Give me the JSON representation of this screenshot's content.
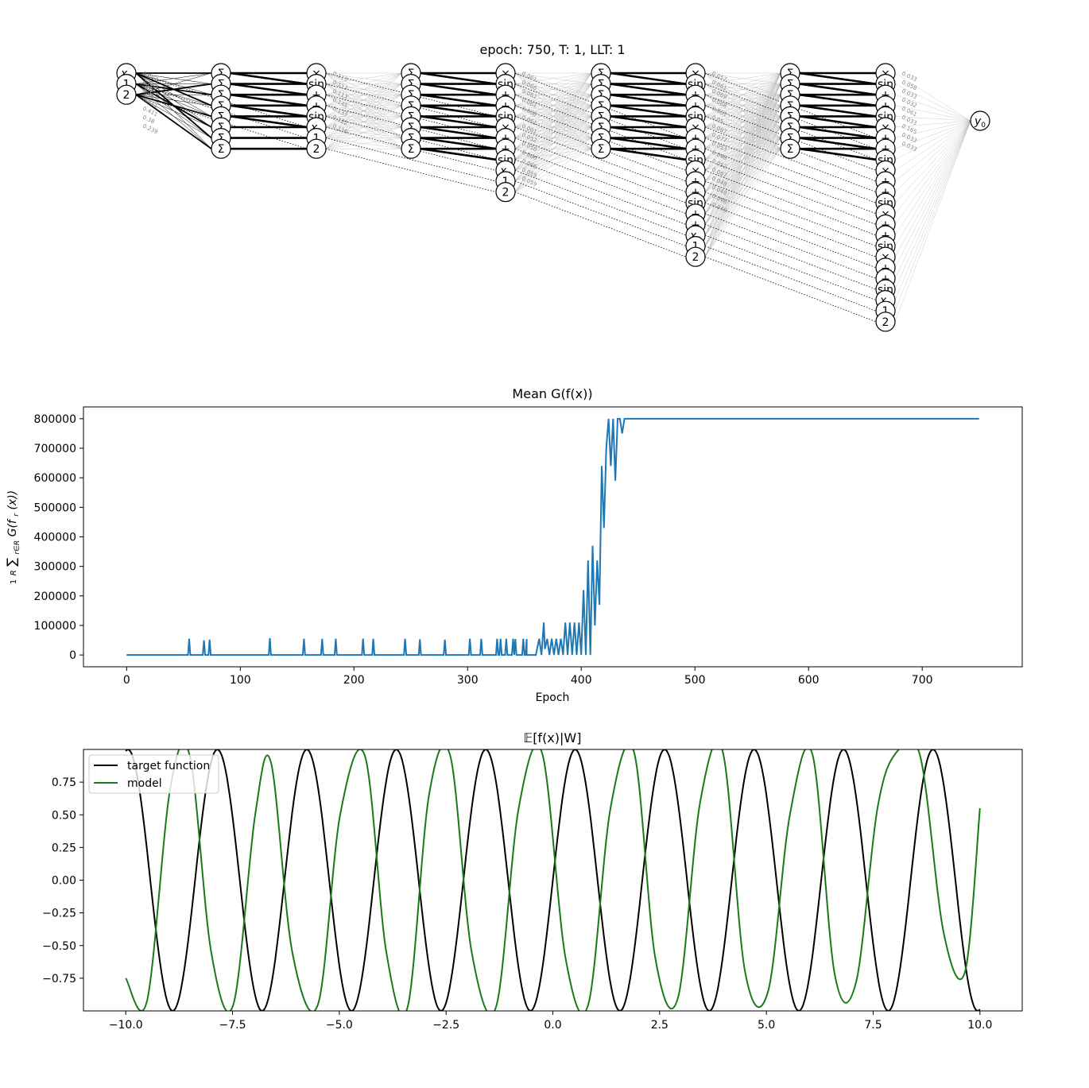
{
  "network": {
    "title": "epoch: 750, T: 1, LLT: 1",
    "layers": [
      {
        "nodes": [
          "x0",
          "1",
          "2"
        ]
      },
      {
        "nodes": [
          "Σ",
          "Σ",
          "Σ",
          "Σ",
          "Σ",
          "Σ",
          "Σ",
          "Σ"
        ]
      },
      {
        "nodes": [
          "×",
          "sin",
          "+",
          "+",
          "sin",
          "x0",
          "1",
          "2"
        ]
      },
      {
        "nodes": [
          "Σ",
          "Σ",
          "Σ",
          "Σ",
          "Σ",
          "Σ",
          "Σ",
          "Σ"
        ]
      },
      {
        "nodes": [
          "×",
          "sin",
          "+",
          "+",
          "sin",
          "×",
          "+",
          "+",
          "sin",
          "x0",
          "1",
          "2"
        ]
      },
      {
        "nodes": [
          "Σ",
          "Σ",
          "Σ",
          "Σ",
          "Σ",
          "Σ",
          "Σ",
          "Σ"
        ]
      },
      {
        "nodes": [
          "×",
          "sin",
          "+",
          "+",
          "sin",
          "×",
          "+",
          "+",
          "sin",
          "×",
          "+",
          "+",
          "sin",
          "+",
          "+",
          "x0",
          "1",
          "2"
        ]
      },
      {
        "nodes": [
          "Σ",
          "Σ",
          "Σ",
          "Σ",
          "Σ",
          "Σ",
          "Σ",
          "Σ"
        ]
      },
      {
        "nodes": [
          "×",
          "sin",
          "+",
          "+",
          "sin",
          "×",
          "+",
          "+",
          "sin",
          "×",
          "+",
          "+",
          "sin",
          "×",
          "+",
          "+",
          "sin",
          "×",
          "+",
          "+",
          "sin",
          "x0",
          "1",
          "2"
        ]
      },
      {
        "nodes": [
          "y0"
        ]
      }
    ],
    "weight_labels": [
      {
        "layer": 0,
        "values": [
          "0.007",
          "0.063",
          "0.41",
          "0.411",
          "0.411",
          "0.38",
          "0.239"
        ]
      },
      {
        "layer": 2,
        "values": [
          "0.113",
          "0.112",
          "0.113",
          "0.145",
          "0.133",
          "0.122",
          "0.116"
        ]
      },
      {
        "layer": 4,
        "values": [
          "0.061",
          "0.066",
          "0.061",
          "0.061",
          "0.068",
          "0.061",
          "0.061",
          "0.052",
          "0.058",
          "0.066",
          "0.066",
          "0.059",
          "0.059"
        ]
      },
      {
        "layer": 6,
        "values": [
          "0.057",
          "0.061",
          "0.069",
          "0.068",
          "0.061",
          "0.05",
          "0.087",
          "0.077",
          "0.053",
          "0.048",
          "0.052",
          "0.067",
          "0.048",
          "0.049",
          "0.046",
          "0.049"
        ]
      },
      {
        "layer": 8,
        "values": [
          "0.033",
          "0.058",
          "0.033",
          "0.032",
          "0.061",
          "0.033",
          "0.165",
          "0.033",
          "0.033"
        ]
      }
    ]
  },
  "chart_data": [
    {
      "type": "line",
      "title": "Mean G(f(x))",
      "xlabel": "Epoch",
      "ylabel": "1/R Σ_{r∈R} G(f_r(x))",
      "xlim": [
        -38,
        788
      ],
      "ylim": [
        -40000,
        840000
      ],
      "xticks": [
        0,
        100,
        200,
        300,
        400,
        500,
        600,
        700
      ],
      "yticks": [
        0,
        100000,
        200000,
        300000,
        400000,
        500000,
        600000,
        700000,
        800000
      ],
      "color": "#1f77b4",
      "baseline": 0,
      "spikes": [
        [
          55,
          55000
        ],
        [
          68,
          50000
        ],
        [
          73,
          52000
        ],
        [
          126,
          57000
        ],
        [
          156,
          55000
        ],
        [
          172,
          55000
        ],
        [
          184,
          55000
        ],
        [
          208,
          55000
        ],
        [
          217,
          55000
        ],
        [
          245,
          55000
        ],
        [
          258,
          53000
        ],
        [
          280,
          52000
        ],
        [
          302,
          55000
        ],
        [
          312,
          55000
        ],
        [
          326,
          55000
        ],
        [
          329,
          55000
        ],
        [
          334,
          55000
        ],
        [
          340,
          55000
        ],
        [
          342,
          54000
        ],
        [
          349,
          55000
        ],
        [
          352,
          54000
        ]
      ],
      "series": [
        {
          "x": [
            352,
            360,
            363,
            365,
            367,
            368,
            370,
            372,
            374,
            376,
            378,
            380,
            382,
            384,
            386,
            388,
            390,
            392,
            394,
            396,
            398,
            400,
            402,
            404,
            406,
            408,
            410,
            412,
            414,
            416,
            418,
            420,
            422,
            424,
            426,
            428,
            430,
            432,
            434,
            436,
            438,
            440,
            442,
            444,
            750
          ],
          "values": [
            0,
            0,
            55000,
            0,
            110000,
            20000,
            55000,
            0,
            55000,
            0,
            55000,
            0,
            55000,
            0,
            110000,
            0,
            110000,
            0,
            110000,
            0,
            110000,
            0,
            220000,
            0,
            320000,
            0,
            370000,
            100000,
            320000,
            170000,
            640000,
            430000,
            700000,
            800000,
            640000,
            800000,
            590000,
            800000,
            800000,
            750000,
            800000,
            800000,
            800000,
            800000,
            800000
          ]
        }
      ]
    },
    {
      "type": "line",
      "title": "𝔼[f(x)|W]",
      "xlabel": "",
      "ylabel": "",
      "xlim": [
        -10.99,
        10.99
      ],
      "ylim": [
        -1.0,
        1.0
      ],
      "xticks": [
        -10.0,
        -7.5,
        -5.0,
        -2.5,
        0.0,
        2.5,
        5.0,
        7.5,
        10.0
      ],
      "xtick_labels": [
        "−10.0",
        "−7.5",
        "−5.0",
        "−2.5",
        "0.0",
        "2.5",
        "5.0",
        "7.5",
        "10.0"
      ],
      "yticks": [
        -0.75,
        -0.5,
        -0.25,
        0.0,
        0.25,
        0.5,
        0.75
      ],
      "ytick_labels": [
        "−0.75",
        "−0.50",
        "−0.25",
        "0.00",
        "0.25",
        "0.50",
        "0.75"
      ],
      "legend_position": "top-left",
      "series": [
        {
          "name": "target function",
          "color": "#000000",
          "formula": "sin(3x)",
          "x_range": [
            -10,
            10
          ]
        },
        {
          "name": "model",
          "color": "#1a7a1a",
          "x": [
            -10.0,
            -9.5,
            -8.96,
            -8.5,
            -8.0,
            -7.48,
            -6.97,
            -6.6,
            -6.1,
            -5.5,
            -4.98,
            -4.4,
            -3.9,
            -3.4,
            -2.9,
            -2.4,
            -1.9,
            -1.33,
            -0.8,
            -0.25,
            0.3,
            0.83,
            1.35,
            1.9,
            2.4,
            2.93,
            3.45,
            3.98,
            4.5,
            5.04,
            5.55,
            6.08,
            6.6,
            7.1,
            7.6,
            8.05,
            8.6,
            9.15,
            9.65,
            10.0
          ],
          "values": [
            -0.75,
            -0.92,
            0.7,
            0.95,
            -0.55,
            -0.95,
            0.5,
            0.9,
            -0.55,
            -0.95,
            0.5,
            0.95,
            -0.55,
            -0.97,
            0.65,
            0.95,
            -0.55,
            -0.97,
            0.55,
            0.97,
            -0.6,
            -0.95,
            0.55,
            0.98,
            -0.6,
            -0.9,
            0.6,
            0.98,
            -0.7,
            -0.85,
            0.5,
            0.96,
            -0.72,
            -0.78,
            0.55,
            0.98,
            0.95,
            -0.4,
            -0.7,
            0.55
          ]
        }
      ]
    }
  ]
}
